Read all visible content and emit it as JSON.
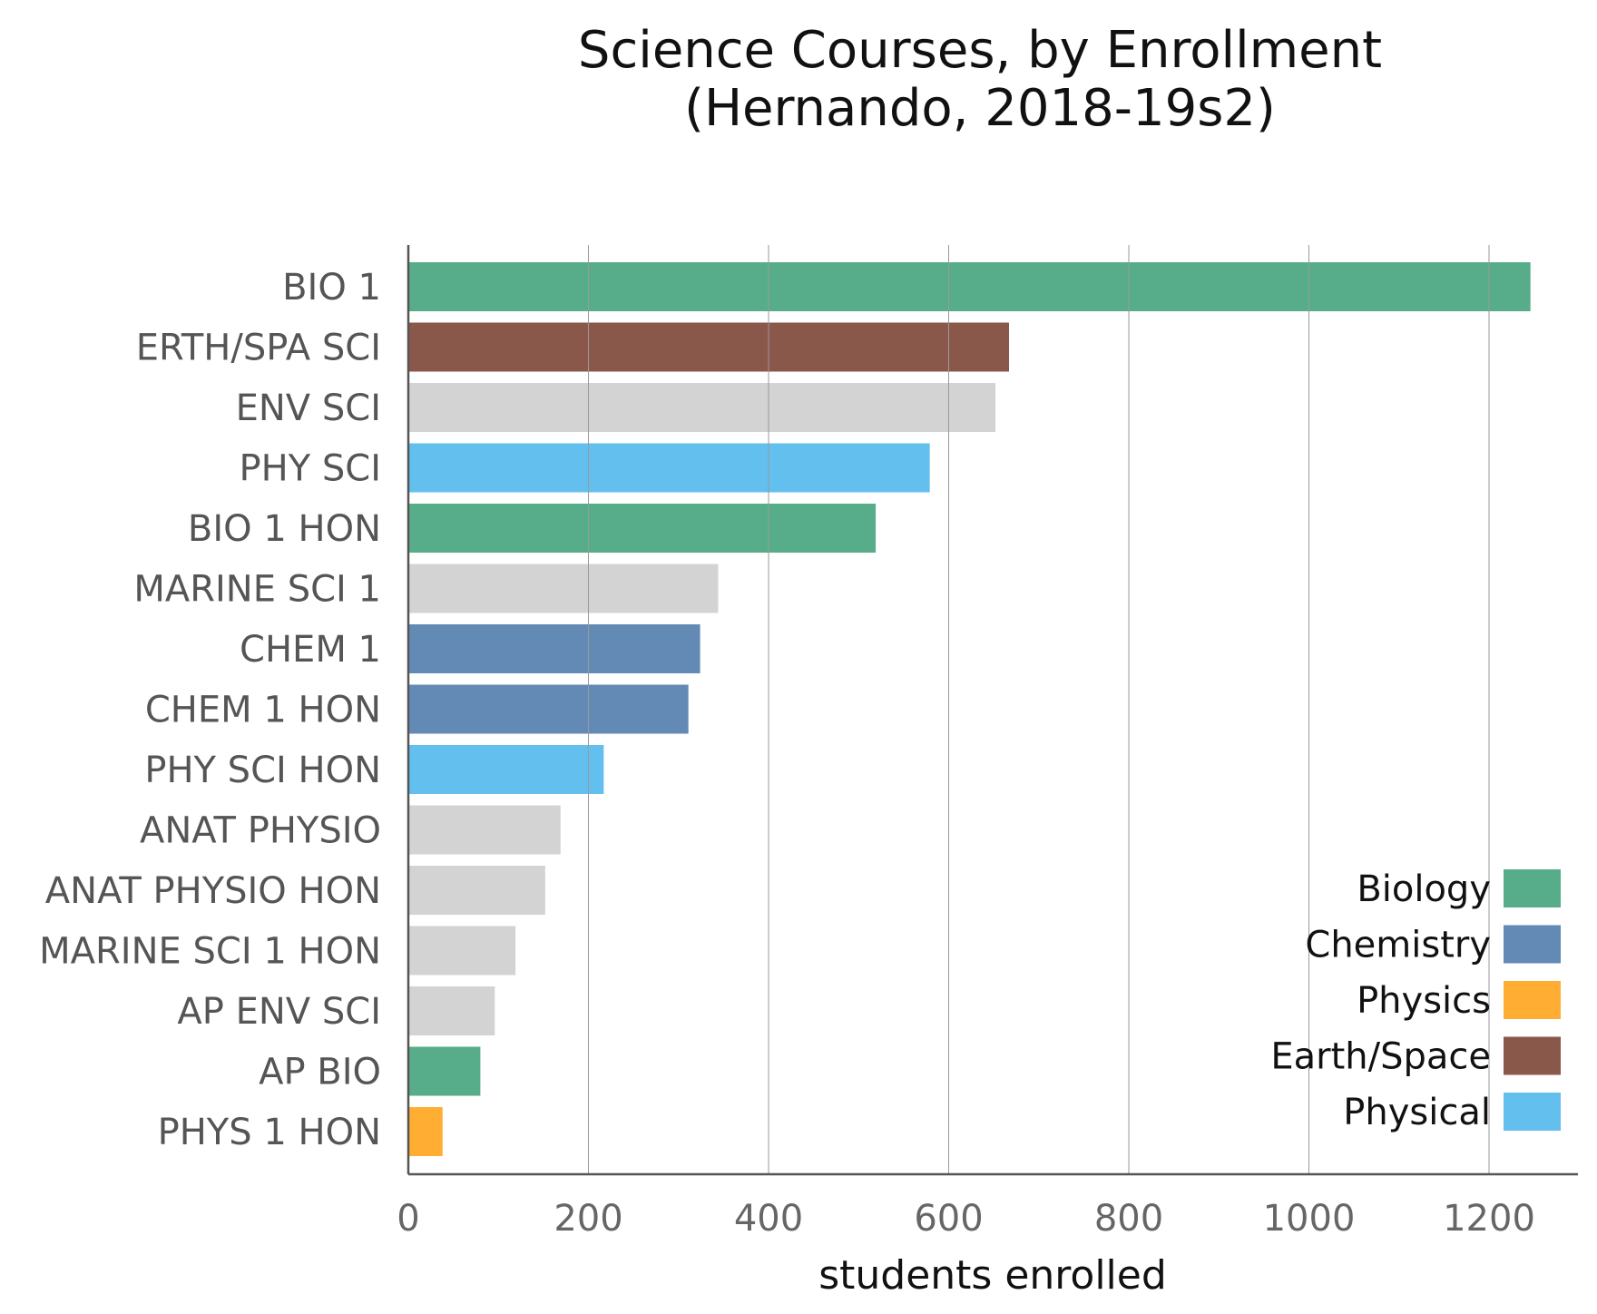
{
  "chart_data": {
    "type": "bar",
    "orientation": "horizontal",
    "title_lines": [
      "Science Courses, by Enrollment",
      "(Hernando, 2018-19s2)"
    ],
    "xlabel": "students enrolled",
    "ylabel": "",
    "xlim": [
      0,
      1300
    ],
    "xticks": [
      0,
      200,
      400,
      600,
      800,
      1000,
      1200
    ],
    "grid": "vertical",
    "legend_position": "bottom-right",
    "categories": [
      "BIO 1",
      "ERTH/SPA SCI",
      "ENV SCI",
      "PHY SCI",
      "BIO 1 HON",
      "MARINE SCI 1",
      "CHEM 1",
      "CHEM 1 HON",
      "PHY SCI HON",
      "ANAT PHYSIO",
      "ANAT PHYSIO HON",
      "MARINE SCI 1 HON",
      "AP ENV SCI",
      "AP BIO",
      "PHYS 1 HON"
    ],
    "values": [
      1246,
      667,
      652,
      579,
      519,
      344,
      324,
      311,
      217,
      169,
      152,
      119,
      96,
      80,
      38
    ],
    "bar_colors": [
      "#57ad89",
      "#8a574b",
      "#d3d3d3",
      "#63bfed",
      "#57ad89",
      "#d3d3d3",
      "#6389b5",
      "#6389b5",
      "#63bfed",
      "#d3d3d3",
      "#d3d3d3",
      "#d3d3d3",
      "#d3d3d3",
      "#57ad89",
      "#ffad33"
    ],
    "legend": [
      {
        "label": "Biology",
        "color": "#57ad89"
      },
      {
        "label": "Chemistry",
        "color": "#6389b5"
      },
      {
        "label": "Physics",
        "color": "#ffad33"
      },
      {
        "label": "Earth/Space",
        "color": "#8a574b"
      },
      {
        "label": "Physical",
        "color": "#63bfed"
      }
    ]
  }
}
